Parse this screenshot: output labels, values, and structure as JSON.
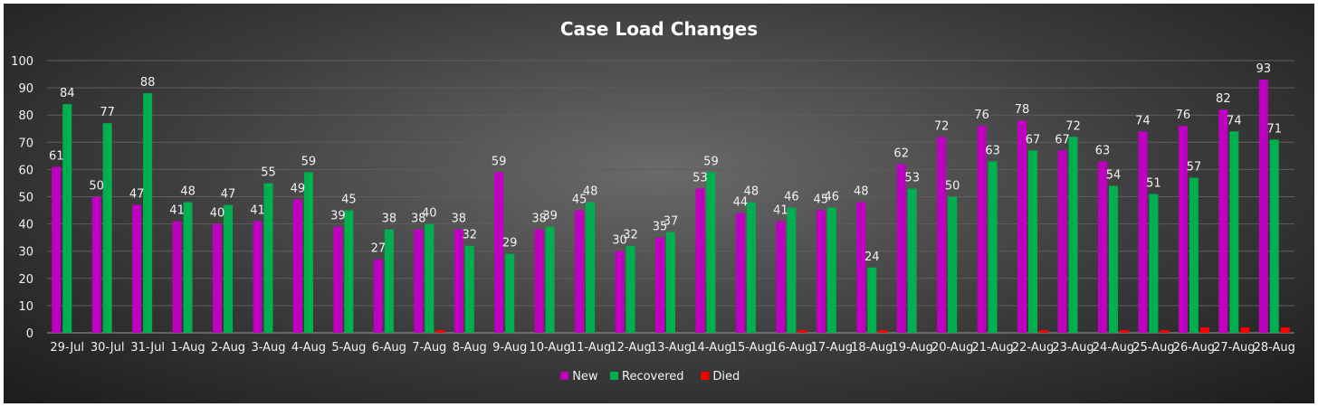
{
  "chart_data": {
    "type": "bar",
    "title": "Case Load Changes",
    "categories": [
      "29-Jul",
      "30-Jul",
      "31-Jul",
      "1-Aug",
      "2-Aug",
      "3-Aug",
      "4-Aug",
      "5-Aug",
      "6-Aug",
      "7-Aug",
      "8-Aug",
      "9-Aug",
      "10-Aug",
      "11-Aug",
      "12-Aug",
      "13-Aug",
      "14-Aug",
      "15-Aug",
      "16-Aug",
      "17-Aug",
      "18-Aug",
      "19-Aug",
      "20-Aug",
      "21-Aug",
      "22-Aug",
      "23-Aug",
      "24-Aug",
      "25-Aug",
      "26-Aug",
      "27-Aug",
      "28-Aug"
    ],
    "series": [
      {
        "name": "New",
        "color": "#c000c0",
        "values": [
          61,
          50,
          47,
          41,
          40,
          41,
          49,
          39,
          27,
          38,
          38,
          59,
          38,
          45,
          30,
          35,
          53,
          44,
          41,
          45,
          48,
          62,
          72,
          76,
          78,
          67,
          63,
          74,
          76,
          82,
          93
        ]
      },
      {
        "name": "Recovered",
        "color": "#00b050",
        "values": [
          84,
          77,
          88,
          48,
          47,
          55,
          59,
          45,
          38,
          40,
          32,
          29,
          39,
          48,
          32,
          37,
          59,
          48,
          46,
          46,
          24,
          53,
          50,
          63,
          67,
          72,
          54,
          51,
          57,
          74,
          71
        ]
      },
      {
        "name": "Died",
        "color": "#ff0000",
        "values": [
          0,
          0,
          0,
          0,
          0,
          0,
          0,
          0,
          0,
          1,
          0,
          0,
          0,
          0,
          0,
          0,
          0,
          0,
          1,
          0,
          1,
          0,
          0,
          0,
          1,
          0,
          1,
          1,
          2,
          2,
          2
        ]
      }
    ],
    "ylim": [
      0,
      100
    ],
    "yticks": [
      0,
      10,
      20,
      30,
      40,
      50,
      60,
      70,
      80,
      90,
      100
    ],
    "grid": true,
    "legend_position": "bottom",
    "data_labels": [
      "New",
      "Recovered"
    ]
  }
}
